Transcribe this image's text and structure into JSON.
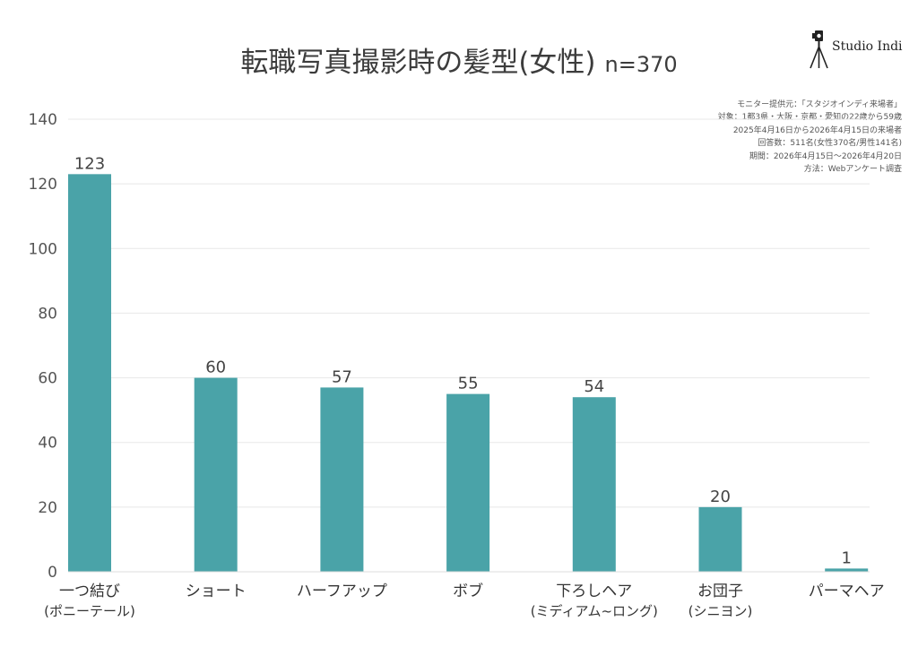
{
  "header": {
    "title": "転職写真撮影時の髪型(女性)",
    "sample": "n=370",
    "logo_text": "Studio Indi"
  },
  "notes": [
    "モニター提供元：「スタジオインディ来場者」",
    "対象：1都3県・大阪・京都・愛知の22歳から59歳",
    "2025年4月16日から2026年4月15日の来場者",
    "回答数：511名(女性370名/男性141名)",
    "期間：2026年4月15日〜2026年4月20日",
    "方法：Webアンケート調査"
  ],
  "colors": {
    "bar": "#4aa3a8",
    "grid": "#e8e8e8",
    "axis": "#dddddd"
  },
  "chart_data": {
    "type": "bar",
    "categories": [
      "一つ結び",
      "ショート",
      "ハーフアップ",
      "ボブ",
      "下ろしヘア",
      "お団子",
      "パーマヘア"
    ],
    "category_sublabels": [
      "(ポニーテール)",
      "",
      "",
      "",
      "(ミディアム~ロング)",
      "(シニヨン)",
      ""
    ],
    "values": [
      123,
      60,
      57,
      55,
      54,
      20,
      1
    ],
    "ylim": [
      0,
      140
    ],
    "yticks": [
      0,
      20,
      40,
      60,
      80,
      100,
      120,
      140
    ],
    "grid": true,
    "legend": "none",
    "xlabel": "",
    "ylabel": ""
  }
}
